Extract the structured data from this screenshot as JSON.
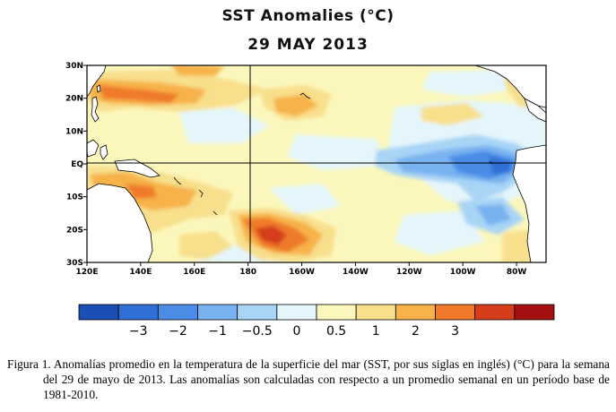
{
  "title": "SST Anomalies (°C)",
  "date": "29 MAY 2013",
  "map": {
    "lat_labels": [
      "30N",
      "20N",
      "10N",
      "EQ",
      "10S",
      "20S",
      "30S"
    ],
    "lon_labels": [
      "120E",
      "140E",
      "160E",
      "180",
      "160W",
      "140W",
      "120W",
      "100W",
      "80W"
    ],
    "lat_range": [
      -30,
      30
    ],
    "lon_range_east": [
      120,
      291
    ],
    "reference_lines": [
      "Equator",
      "180"
    ],
    "land_color": "#ffffff",
    "coastline_color": "#000000"
  },
  "colorbar": {
    "colors": [
      "#1c4fb6",
      "#2f6fd6",
      "#4a8ce6",
      "#78b2f0",
      "#a8d4f6",
      "#e4f6fb",
      "#fbf7bc",
      "#f8df8c",
      "#f7b24a",
      "#ef7a2a",
      "#d63d1b",
      "#a50f12"
    ],
    "tick_labels": [
      "−3",
      "−2",
      "−1",
      "−0.5",
      "0",
      "0.5",
      "1",
      "2",
      "3"
    ]
  },
  "caption": "Figura 1. Anomalías promedio en la temperatura de la superficie del mar (SST, por sus siglas en inglés) (°C) para la semana del 29 de mayo de 2013.   Las anomalías son calculadas con respecto a un promedio semanal en un período base de 1981-2010."
}
